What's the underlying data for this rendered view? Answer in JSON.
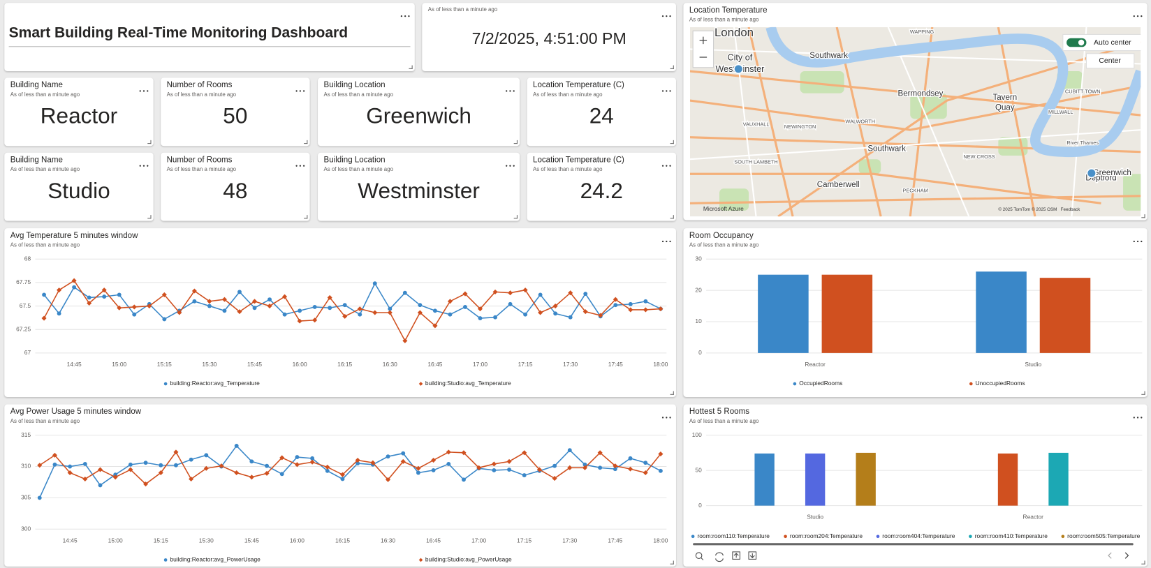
{
  "header": {
    "title": "Smart Building Real-Time Monitoring Dashboard"
  },
  "clock": {
    "subtitle": "As of less than a minute ago",
    "value": "7/2/2025, 4:51:00 PM"
  },
  "cards": [
    {
      "title": "Building Name",
      "subtitle": "As of less than a minute ago",
      "value": "Reactor"
    },
    {
      "title": "Number of Rooms",
      "subtitle": "As of less than a minute ago",
      "value": 50
    },
    {
      "title": "Building Location",
      "subtitle": "As of less than a minute ago",
      "value": "Greenwich"
    },
    {
      "title": "Location Temperature (C)",
      "subtitle": "As of less than a minute ago",
      "value": 24
    },
    {
      "title": "Building Name",
      "subtitle": "As of less than a minute ago",
      "value": "Studio"
    },
    {
      "title": "Number of Rooms",
      "subtitle": "As of less than a minute ago",
      "value": 48
    },
    {
      "title": "Building Location",
      "subtitle": "As of less than a minute ago",
      "value": "Westminster"
    },
    {
      "title": "Location Temperature (C)",
      "subtitle": "As of less than a minute ago",
      "value": 24.2
    }
  ],
  "map": {
    "title": "Location Temperature",
    "subtitle": "As of less than a minute ago",
    "labels": [
      "London",
      "City of",
      "Westminster",
      "Southwark",
      "Bermondsey",
      "Tavern",
      "Quay",
      "Southwark",
      "Camberwell",
      "Deptford",
      "Greenwich",
      "WALWORTH",
      "NEWINGTON",
      "VAUXHALL",
      "SOUTH LAMBETH",
      "PECKHAM",
      "NEW CROSS",
      "MILLWALL",
      "CUBITT TOWN",
      "WAPPING",
      "River Thames"
    ],
    "controls": {
      "auto_center": "Auto center",
      "center": "Center"
    },
    "attribution": {
      "provider": "Microsoft Azure",
      "copyright": "© 2025 TomTom © 2025 OSM",
      "feedback": "Feedback"
    }
  },
  "chart_data": [
    {
      "type": "line",
      "title": "Avg Temperature 5 minutes window",
      "subtitle": "As of less than a minute ago",
      "x": [
        "14:35",
        "14:40",
        "14:45",
        "14:50",
        "14:55",
        "15:00",
        "15:05",
        "15:10",
        "15:15",
        "15:20",
        "15:25",
        "15:30",
        "15:35",
        "15:40",
        "15:45",
        "15:50",
        "15:55",
        "16:00",
        "16:05",
        "16:10",
        "16:15",
        "16:20",
        "16:25",
        "16:30",
        "16:35",
        "16:40",
        "16:45",
        "16:50",
        "16:55",
        "17:00",
        "17:05",
        "17:10",
        "17:15",
        "17:20",
        "17:25",
        "17:30",
        "17:35",
        "17:40",
        "17:45",
        "17:50",
        "17:55",
        "18:00"
      ],
      "xticks": [
        "14:45",
        "15:00",
        "15:15",
        "15:30",
        "15:45",
        "16:00",
        "16:15",
        "16:30",
        "16:45",
        "17:00",
        "17:15",
        "17:30",
        "17:45",
        "18:00"
      ],
      "ylim": [
        67,
        68
      ],
      "yticks": [
        67,
        67.25,
        67.5,
        67.75,
        68
      ],
      "grid": true,
      "series": [
        {
          "name": "building:Reactor:avg_Temperature",
          "color": "#3a87c8",
          "marker": "circle",
          "values": [
            67.62,
            67.42,
            67.7,
            67.59,
            67.6,
            67.62,
            67.41,
            67.52,
            67.36,
            67.45,
            67.55,
            67.5,
            67.45,
            67.65,
            67.48,
            67.57,
            67.41,
            67.45,
            67.49,
            67.48,
            67.51,
            67.41,
            67.74,
            67.47,
            67.64,
            67.51,
            67.45,
            67.41,
            67.49,
            67.37,
            67.38,
            67.52,
            67.41,
            67.62,
            67.42,
            67.38,
            67.63,
            67.39,
            67.51,
            67.52,
            67.55,
            67.47
          ]
        },
        {
          "name": "building:Studio:avg_Temperature",
          "color": "#d0501f",
          "marker": "diamond",
          "values": [
            67.37,
            67.67,
            67.77,
            67.53,
            67.67,
            67.48,
            67.49,
            67.5,
            67.62,
            67.43,
            67.66,
            67.55,
            67.57,
            67.44,
            67.55,
            67.5,
            67.6,
            67.34,
            67.35,
            67.59,
            67.39,
            67.47,
            67.43,
            67.43,
            67.13,
            67.43,
            67.29,
            67.55,
            67.63,
            67.47,
            67.65,
            67.64,
            67.67,
            67.43,
            67.5,
            67.64,
            67.44,
            67.4,
            67.57,
            67.46,
            67.46,
            67.47
          ]
        }
      ]
    },
    {
      "type": "bar",
      "title": "Room Occupancy",
      "subtitle": "As of less than a minute ago",
      "categories": [
        "Reactor",
        "Studio"
      ],
      "ylim": [
        0,
        30
      ],
      "yticks": [
        0,
        10,
        20,
        30
      ],
      "grid": true,
      "series": [
        {
          "name": "OccupiedRooms",
          "color": "#3a87c8",
          "values": [
            25,
            26
          ]
        },
        {
          "name": "UnoccupiedRooms",
          "color": "#d0501f",
          "values": [
            25,
            24
          ]
        }
      ]
    },
    {
      "type": "line",
      "title": "Avg Power Usage 5 minutes window",
      "subtitle": "As of less than a minute ago",
      "x": [
        "14:35",
        "14:40",
        "14:45",
        "14:50",
        "14:55",
        "15:00",
        "15:05",
        "15:10",
        "15:15",
        "15:20",
        "15:25",
        "15:30",
        "15:35",
        "15:40",
        "15:45",
        "15:50",
        "15:55",
        "16:00",
        "16:05",
        "16:10",
        "16:15",
        "16:20",
        "16:25",
        "16:30",
        "16:35",
        "16:40",
        "16:45",
        "16:50",
        "16:55",
        "17:00",
        "17:05",
        "17:10",
        "17:15",
        "17:20",
        "17:25",
        "17:30",
        "17:35",
        "17:40",
        "17:45",
        "17:50",
        "17:55",
        "18:00"
      ],
      "xticks": [
        "14:45",
        "15:00",
        "15:15",
        "15:30",
        "15:45",
        "16:00",
        "16:15",
        "16:30",
        "16:45",
        "17:00",
        "17:15",
        "17:30",
        "17:45",
        "18:00"
      ],
      "ylim": [
        300,
        315
      ],
      "yticks": [
        300,
        305,
        310,
        315
      ],
      "grid": true,
      "series": [
        {
          "name": "building:Reactor:avg_PowerUsage",
          "color": "#3a87c8",
          "marker": "circle",
          "values": [
            305,
            310.3,
            310,
            310.4,
            307,
            308.7,
            310.3,
            310.6,
            310.2,
            310.2,
            311.1,
            311.8,
            310,
            313.3,
            310.8,
            310.1,
            308.8,
            311.5,
            311.3,
            309.3,
            308,
            310.5,
            310.3,
            311.6,
            312.1,
            309,
            309.4,
            310.4,
            307.9,
            309.7,
            309.4,
            309.5,
            308.6,
            309.3,
            310.1,
            312.6,
            310.3,
            309.8,
            309.6,
            311.3,
            310.6,
            309.3
          ]
        },
        {
          "name": "building:Studio:avg_PowerUsage",
          "color": "#d0501f",
          "marker": "diamond",
          "values": [
            310.2,
            311.8,
            309,
            308,
            309.5,
            308.3,
            309.5,
            307.2,
            309,
            312.3,
            308,
            309.7,
            310.1,
            309,
            308.3,
            308.9,
            311.4,
            310.3,
            310.7,
            309.9,
            308.7,
            311,
            310.6,
            307.9,
            310.8,
            309.7,
            311,
            312.3,
            312.2,
            309.8,
            310.4,
            310.8,
            312.2,
            309.5,
            308.1,
            309.8,
            309.8,
            312.2,
            310.1,
            309.6,
            309,
            312
          ]
        }
      ]
    },
    {
      "type": "bar",
      "title": "Hottest 5 Rooms",
      "subtitle": "As of less than a minute ago",
      "categories": [
        "Studio",
        "Reactor"
      ],
      "ylim": [
        0,
        100
      ],
      "yticks": [
        0,
        50,
        100
      ],
      "grid": true,
      "series": [
        {
          "name": "room:room110:Temperature",
          "color": "#3a87c8",
          "values": [
            74,
            null
          ]
        },
        {
          "name": "room:room204:Temperature",
          "color": "#d0501f",
          "values": [
            null,
            74
          ]
        },
        {
          "name": "room:room404:Temperature",
          "color": "#5468e0",
          "values": [
            74,
            null
          ]
        },
        {
          "name": "room:room410:Temperature",
          "color": "#1ca8b4",
          "values": [
            null,
            75
          ]
        },
        {
          "name": "room:room505:Temperature",
          "color": "#b47e1a",
          "values": [
            75,
            null
          ]
        }
      ]
    }
  ]
}
